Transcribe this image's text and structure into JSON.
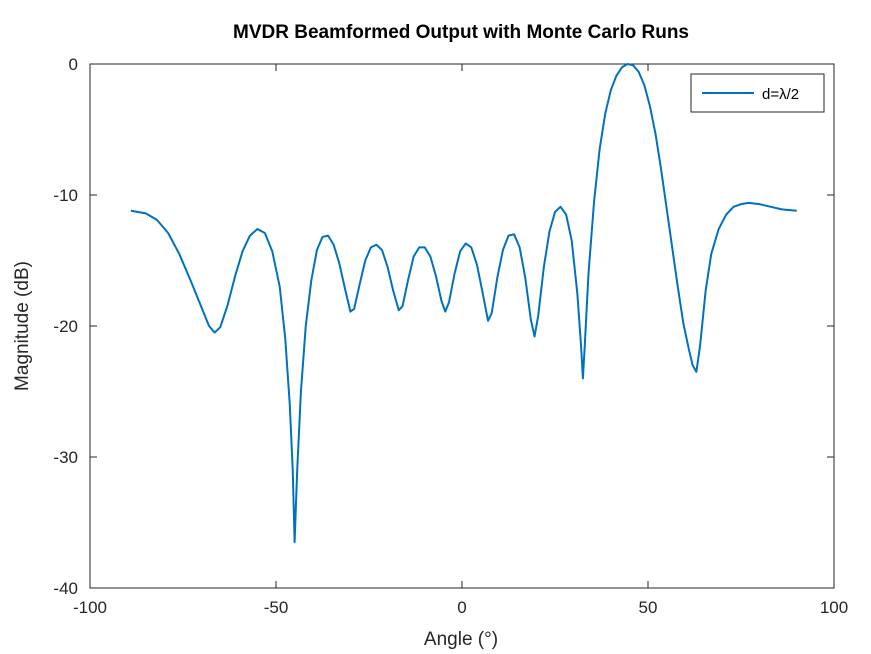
{
  "chart_data": {
    "type": "line",
    "title": "MVDR Beamformed Output with Monte Carlo Runs",
    "xlabel": "Angle (°)",
    "ylabel": "Magnitude (dB)",
    "xlim": [
      -100,
      100
    ],
    "ylim": [
      -40,
      0
    ],
    "xticks": [
      -100,
      -50,
      0,
      50,
      100
    ],
    "yticks": [
      -40,
      -30,
      -20,
      -10,
      0
    ],
    "xtick_labels": [
      "-100",
      "-50",
      "0",
      "50",
      "100"
    ],
    "ytick_labels": [
      "-40",
      "-30",
      "-20",
      "-10",
      "0"
    ],
    "grid": false,
    "legend_position": "top-right",
    "series": [
      {
        "name": "d=λ/2",
        "color": "#0072bd",
        "points": [
          [
            -89,
            -11.2
          ],
          [
            -85,
            -11.4
          ],
          [
            -82,
            -11.9
          ],
          [
            -79,
            -12.9
          ],
          [
            -76,
            -14.5
          ],
          [
            -73,
            -16.5
          ],
          [
            -70,
            -18.6
          ],
          [
            -68,
            -20.0
          ],
          [
            -66.5,
            -20.5
          ],
          [
            -65,
            -20.1
          ],
          [
            -63,
            -18.4
          ],
          [
            -61,
            -16.2
          ],
          [
            -59,
            -14.3
          ],
          [
            -57,
            -13.1
          ],
          [
            -55,
            -12.6
          ],
          [
            -53,
            -12.9
          ],
          [
            -51,
            -14.3
          ],
          [
            -49,
            -17.0
          ],
          [
            -47.5,
            -21.0
          ],
          [
            -46.3,
            -26.0
          ],
          [
            -45.5,
            -31.0
          ],
          [
            -45,
            -36.5
          ],
          [
            -44.3,
            -31.0
          ],
          [
            -43.3,
            -25.0
          ],
          [
            -42,
            -20.0
          ],
          [
            -40.5,
            -16.5
          ],
          [
            -39,
            -14.2
          ],
          [
            -37.5,
            -13.2
          ],
          [
            -36,
            -13.1
          ],
          [
            -34.5,
            -13.8
          ],
          [
            -33,
            -15.2
          ],
          [
            -31.5,
            -17.1
          ],
          [
            -30,
            -18.9
          ],
          [
            -29,
            -18.7
          ],
          [
            -27.5,
            -16.8
          ],
          [
            -26,
            -15.0
          ],
          [
            -24.5,
            -14.0
          ],
          [
            -23,
            -13.8
          ],
          [
            -21.5,
            -14.2
          ],
          [
            -20,
            -15.5
          ],
          [
            -18.5,
            -17.3
          ],
          [
            -17,
            -18.8
          ],
          [
            -16,
            -18.5
          ],
          [
            -14.5,
            -16.5
          ],
          [
            -13,
            -14.7
          ],
          [
            -11.5,
            -14.0
          ],
          [
            -10,
            -14.0
          ],
          [
            -8.5,
            -14.7
          ],
          [
            -7,
            -16.2
          ],
          [
            -5.5,
            -18.1
          ],
          [
            -4.5,
            -18.9
          ],
          [
            -3.5,
            -18.2
          ],
          [
            -2,
            -16.0
          ],
          [
            -0.5,
            -14.3
          ],
          [
            1,
            -13.7
          ],
          [
            2.5,
            -14.0
          ],
          [
            4,
            -15.3
          ],
          [
            5.5,
            -17.4
          ],
          [
            7,
            -19.6
          ],
          [
            8,
            -19.0
          ],
          [
            9.5,
            -16.3
          ],
          [
            11,
            -14.2
          ],
          [
            12.5,
            -13.1
          ],
          [
            14,
            -13.0
          ],
          [
            15.5,
            -14.0
          ],
          [
            17,
            -16.3
          ],
          [
            18.5,
            -19.5
          ],
          [
            19.5,
            -20.8
          ],
          [
            20.5,
            -19.2
          ],
          [
            22,
            -15.5
          ],
          [
            23.5,
            -12.8
          ],
          [
            25,
            -11.3
          ],
          [
            26.5,
            -10.9
          ],
          [
            28,
            -11.5
          ],
          [
            29.5,
            -13.5
          ],
          [
            31,
            -17.5
          ],
          [
            32,
            -21.5
          ],
          [
            32.5,
            -24.0
          ],
          [
            33,
            -21.5
          ],
          [
            34,
            -16.0
          ],
          [
            35.5,
            -10.5
          ],
          [
            37,
            -6.5
          ],
          [
            38.5,
            -3.8
          ],
          [
            40,
            -2.0
          ],
          [
            41.5,
            -0.9
          ],
          [
            43,
            -0.25
          ],
          [
            44.5,
            0.0
          ],
          [
            46,
            -0.1
          ],
          [
            47.5,
            -0.6
          ],
          [
            49,
            -1.6
          ],
          [
            50.5,
            -3.2
          ],
          [
            52,
            -5.3
          ],
          [
            53.5,
            -8.0
          ],
          [
            55,
            -11.0
          ],
          [
            56.5,
            -14.0
          ],
          [
            58,
            -17.0
          ],
          [
            59.5,
            -19.8
          ],
          [
            61,
            -21.8
          ],
          [
            62,
            -23.0
          ],
          [
            63,
            -23.5
          ],
          [
            64,
            -21.5
          ],
          [
            65.5,
            -17.3
          ],
          [
            67,
            -14.5
          ],
          [
            69,
            -12.6
          ],
          [
            71,
            -11.5
          ],
          [
            73,
            -10.9
          ],
          [
            75,
            -10.7
          ],
          [
            77,
            -10.6
          ],
          [
            80,
            -10.7
          ],
          [
            83,
            -10.9
          ],
          [
            86,
            -11.1
          ],
          [
            90,
            -11.2
          ]
        ]
      }
    ]
  }
}
